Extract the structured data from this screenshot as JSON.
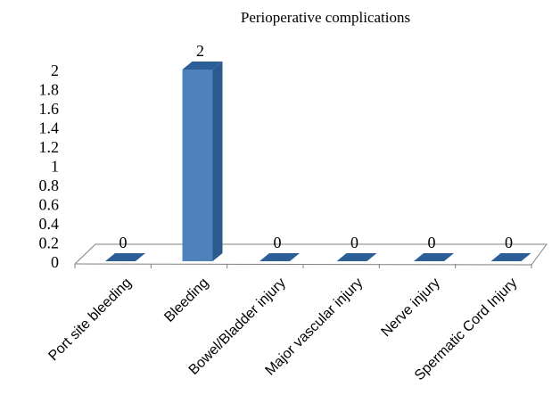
{
  "chart_data": {
    "type": "bar",
    "title": "Perioperative complications",
    "categories": [
      "Port site bleeding",
      "Bleeding",
      "Bowel/Bladder injury",
      "Major vascular injury",
      "Nerve injury",
      "Spermatic Cord Injury"
    ],
    "values": [
      0,
      2,
      0,
      0,
      0,
      0
    ],
    "ylim": [
      0,
      2
    ],
    "yticks": [
      "0",
      "0.2",
      "0.4",
      "0.6",
      "0.8",
      "1",
      "1.2",
      "1.4",
      "1.6",
      "1.8",
      "2"
    ],
    "data_labels": [
      "0",
      "2",
      "0",
      "0",
      "0",
      "0"
    ],
    "grid": false,
    "legend": "none",
    "colors": {
      "bar_front": "#4F81BD",
      "bar_top": "#2C5F97",
      "bar_side": "#2B5A8C",
      "floor_line": "#7F7F7F"
    }
  }
}
